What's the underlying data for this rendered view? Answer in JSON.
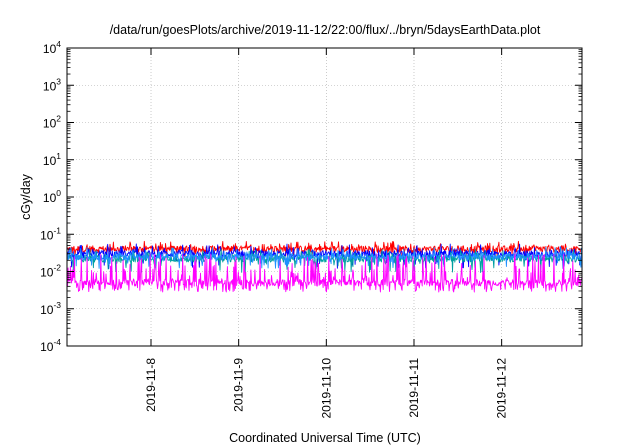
{
  "chart_data": {
    "type": "line",
    "title": "/data/run/goesPlots/archive/2019-11-12/22:00/flux/../bryn/5daysEarthData.plot",
    "xlabel": "Coordinated Universal Time (UTC)",
    "ylabel": "cGy/day",
    "yscale": "log",
    "ylim": [
      0.0001,
      10000
    ],
    "xlim": [
      "2019-11-07T01:00",
      "2019-11-12T22:00"
    ],
    "grid": true,
    "legend": "none",
    "y_ticks": [
      {
        "base": "10",
        "exp": "4"
      },
      {
        "base": "10",
        "exp": "3"
      },
      {
        "base": "10",
        "exp": "2"
      },
      {
        "base": "10",
        "exp": "1"
      },
      {
        "base": "10",
        "exp": "0"
      },
      {
        "base": "10",
        "exp": "-1"
      },
      {
        "base": "10",
        "exp": "-2"
      },
      {
        "base": "10",
        "exp": "-3"
      },
      {
        "base": "10",
        "exp": "-4"
      }
    ],
    "x_ticks": [
      "2019-11-8",
      "2019-11-9",
      "2019-11-10",
      "2019-11-11",
      "2019-11-12"
    ],
    "series": [
      {
        "color": "#ff0000",
        "typical": 0.04,
        "low": 0.025,
        "high": 0.065
      },
      {
        "color": "#0000ff",
        "typical": 0.03,
        "low": 0.012,
        "high": 0.055
      },
      {
        "color": "#00a0a0",
        "typical": 0.022,
        "low": 0.009,
        "high": 0.04
      },
      {
        "color": "#1e90ff",
        "typical": 0.025,
        "low": 0.012,
        "high": 0.045
      },
      {
        "color": "#ff00ff",
        "typical": 0.005,
        "low": 0.0028,
        "high": 0.03
      }
    ]
  }
}
